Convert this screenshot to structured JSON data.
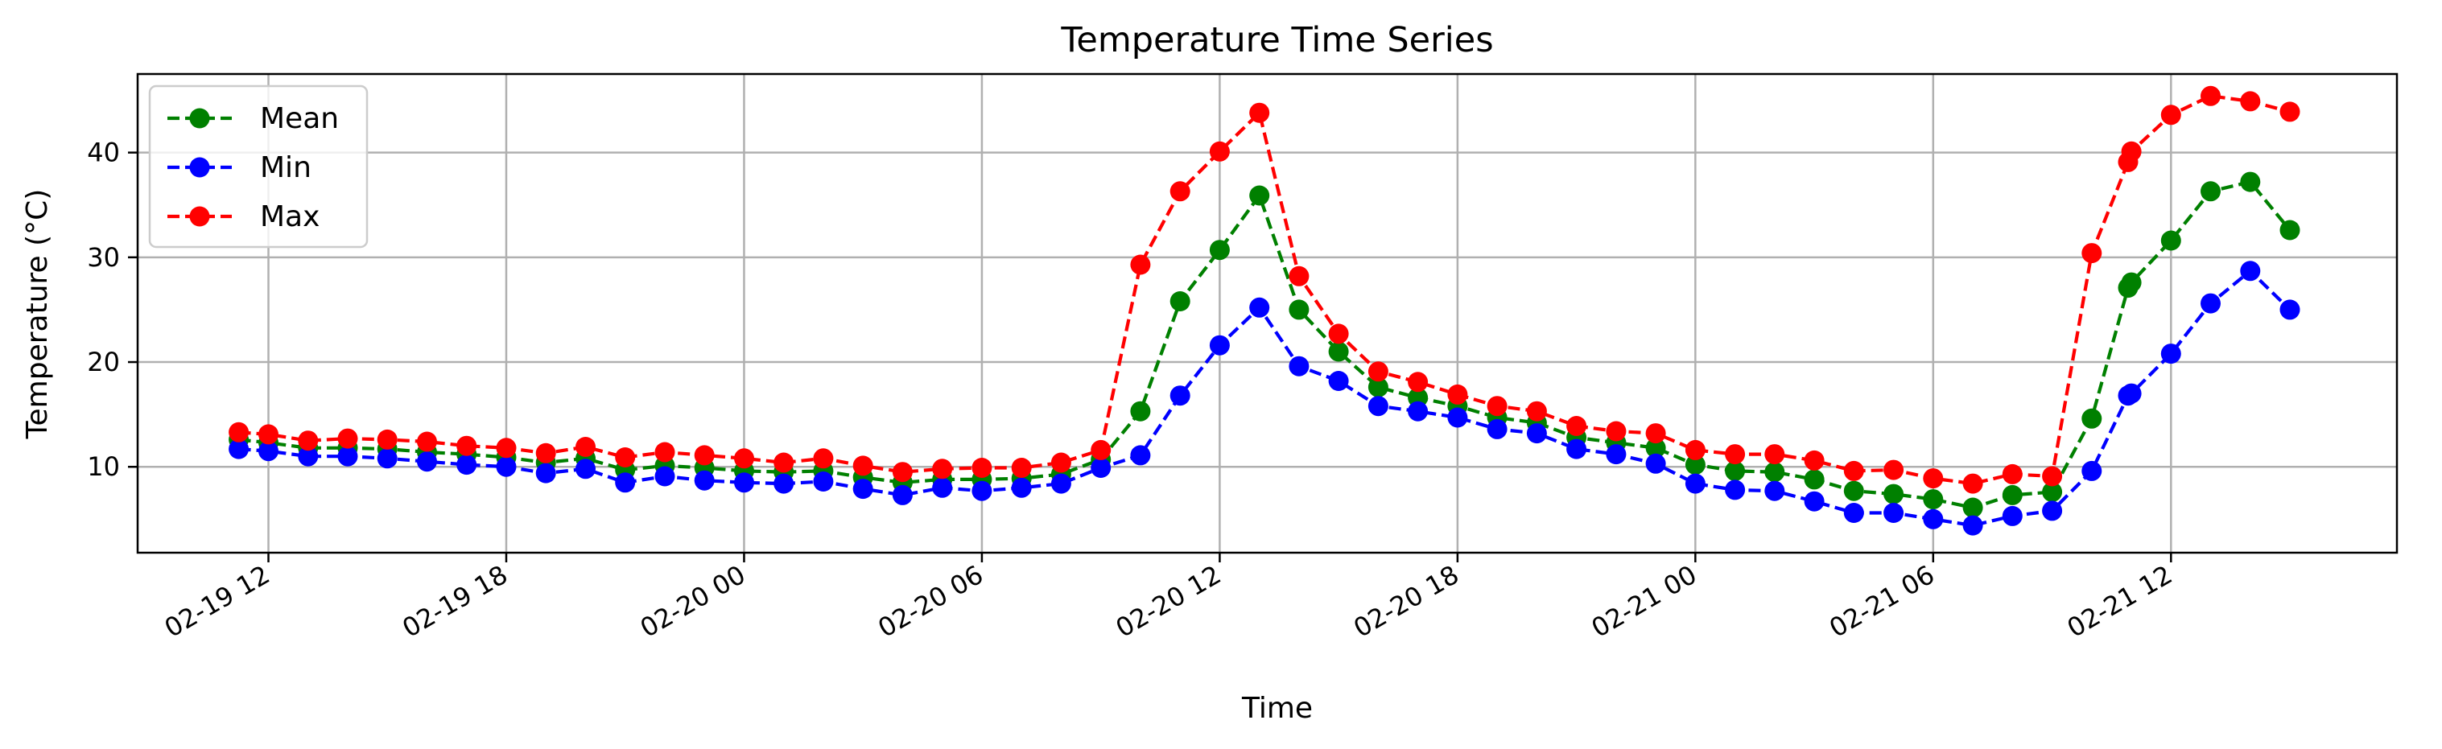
{
  "chart_data": {
    "type": "line",
    "title": "Temperature Time Series",
    "xlabel": "Time",
    "ylabel": "Temperature (°C)",
    "ylim": [
      1.8,
      47.5
    ],
    "yticks": [
      10,
      20,
      30,
      40
    ],
    "x_axis": "datetime",
    "x_format": "MM-DD HH",
    "xlim": [
      "2021-02-19 08:42",
      "2021-02-21 17:42"
    ],
    "xticks": [
      "02-19 12",
      "02-19 18",
      "02-20 00",
      "02-20 06",
      "02-20 12",
      "02-20 18",
      "02-21 00",
      "02-21 06",
      "02-21 12"
    ],
    "grid": true,
    "legend": "upper left",
    "x": [
      "2021-02-19 11:15",
      "2021-02-19 12:00",
      "2021-02-19 13:00",
      "2021-02-19 14:00",
      "2021-02-19 15:00",
      "2021-02-19 16:00",
      "2021-02-19 17:00",
      "2021-02-19 18:00",
      "2021-02-19 19:00",
      "2021-02-19 20:00",
      "2021-02-19 21:00",
      "2021-02-19 22:00",
      "2021-02-19 23:00",
      "2021-02-20 00:00",
      "2021-02-20 01:00",
      "2021-02-20 02:00",
      "2021-02-20 03:00",
      "2021-02-20 04:00",
      "2021-02-20 05:00",
      "2021-02-20 06:00",
      "2021-02-20 07:00",
      "2021-02-20 08:00",
      "2021-02-20 09:00",
      "2021-02-20 10:00",
      "2021-02-20 11:00",
      "2021-02-20 12:00",
      "2021-02-20 13:00",
      "2021-02-20 14:00",
      "2021-02-20 15:00",
      "2021-02-20 16:00",
      "2021-02-20 17:00",
      "2021-02-20 18:00",
      "2021-02-20 19:00",
      "2021-02-20 20:00",
      "2021-02-20 21:00",
      "2021-02-20 22:00",
      "2021-02-20 23:00",
      "2021-02-21 00:00",
      "2021-02-21 01:00",
      "2021-02-21 02:00",
      "2021-02-21 03:00",
      "2021-02-21 04:00",
      "2021-02-21 05:00",
      "2021-02-21 06:00",
      "2021-02-21 07:00",
      "2021-02-21 08:00",
      "2021-02-21 09:00",
      "2021-02-21 10:00",
      "2021-02-21 10:55",
      "2021-02-21 11:00",
      "2021-02-21 12:00",
      "2021-02-21 13:00",
      "2021-02-21 14:00",
      "2021-02-21 15:00"
    ],
    "series": [
      {
        "name": "Mean",
        "color": "#008000",
        "values": [
          12.6,
          12.3,
          11.8,
          11.8,
          11.7,
          11.4,
          11.2,
          10.9,
          10.4,
          10.8,
          9.7,
          10.1,
          9.9,
          9.6,
          9.5,
          9.6,
          9.0,
          8.5,
          8.8,
          8.8,
          8.9,
          9.3,
          10.7,
          15.3,
          25.8,
          30.7,
          35.9,
          25.0,
          21.0,
          17.6,
          16.6,
          15.8,
          14.7,
          14.2,
          12.8,
          12.3,
          11.8,
          10.2,
          9.6,
          9.5,
          8.8,
          7.7,
          7.4,
          6.9,
          6.1,
          7.3,
          7.6,
          14.6,
          27.1,
          27.6,
          31.6,
          36.3,
          37.2,
          32.6
        ]
      },
      {
        "name": "Min",
        "color": "#0000ff",
        "values": [
          11.7,
          11.5,
          11.0,
          11.0,
          10.8,
          10.5,
          10.2,
          10.0,
          9.4,
          9.8,
          8.5,
          9.1,
          8.7,
          8.5,
          8.4,
          8.6,
          7.9,
          7.3,
          8.0,
          7.7,
          8.0,
          8.4,
          9.9,
          11.1,
          16.8,
          21.6,
          25.2,
          19.6,
          18.2,
          15.8,
          15.3,
          14.7,
          13.6,
          13.2,
          11.7,
          11.2,
          10.3,
          8.4,
          7.8,
          7.7,
          6.7,
          5.6,
          5.6,
          5.0,
          4.4,
          5.3,
          5.8,
          9.6,
          16.8,
          17.0,
          20.8,
          25.6,
          28.7,
          25.0
        ]
      },
      {
        "name": "Max",
        "color": "#ff0000",
        "values": [
          13.3,
          13.1,
          12.5,
          12.7,
          12.6,
          12.4,
          12.0,
          11.8,
          11.3,
          11.9,
          10.9,
          11.4,
          11.1,
          10.8,
          10.4,
          10.8,
          10.1,
          9.5,
          9.8,
          9.9,
          9.9,
          10.4,
          11.6,
          29.3,
          36.3,
          40.1,
          43.8,
          28.2,
          22.7,
          19.1,
          18.1,
          16.9,
          15.8,
          15.3,
          13.9,
          13.4,
          13.2,
          11.6,
          11.2,
          11.2,
          10.6,
          9.6,
          9.7,
          8.9,
          8.4,
          9.3,
          9.1,
          30.4,
          39.1,
          40.1,
          43.6,
          45.4,
          44.9,
          43.9
        ]
      }
    ]
  }
}
